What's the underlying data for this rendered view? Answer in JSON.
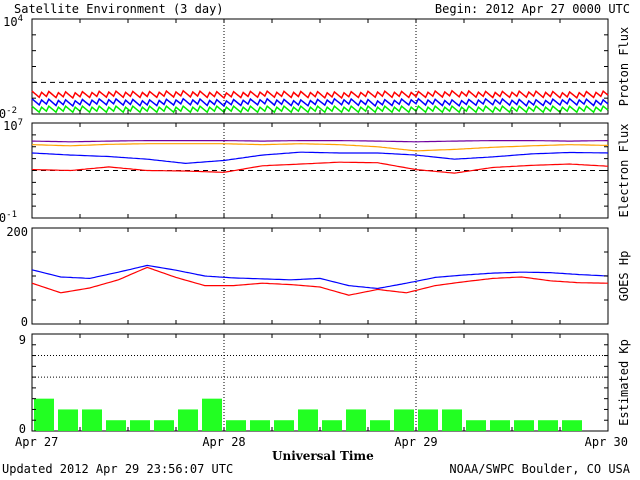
{
  "header": {
    "title": "Satellite Environment (3 day)",
    "begin": "Begin:  2012 Apr 27 0000 UTC"
  },
  "footer": {
    "updated": "Updated 2012 Apr 29 23:56:07 UTC",
    "credit": "NOAA/SWPC Boulder, CO USA"
  },
  "x_axis": {
    "title": "Universal Time",
    "ticks": [
      "Apr 27",
      "Apr 28",
      "Apr 29",
      "Apr 30"
    ]
  },
  "chart_data": [
    {
      "type": "line",
      "ylabel": "Proton Flux",
      "scale": "log",
      "ylim_exp": [
        -2,
        4
      ],
      "tick_base": "10",
      "tick_exponents": [
        "4",
        "-2"
      ],
      "x_range_days": [
        0,
        3
      ],
      "reference_line_level": 1,
      "series": [
        {
          "name_color": "#ff0000",
          "y": [
            0.18,
            0.16,
            0.18,
            0.17,
            0.19,
            0.16,
            0.18,
            0.17,
            0.16,
            0.18,
            0.17,
            0.19,
            0.17,
            0.18,
            0.16,
            0.18
          ]
        },
        {
          "name_color": "#0000ff",
          "y": [
            0.06,
            0.05,
            0.06,
            0.05,
            0.06,
            0.05,
            0.06,
            0.05,
            0.06,
            0.05,
            0.06,
            0.05,
            0.06,
            0.05,
            0.06,
            0.05
          ]
        },
        {
          "name_color": "#00ee00",
          "y": [
            0.02,
            0.02,
            0.02,
            0.02,
            0.02,
            0.02,
            0.02,
            0.02,
            0.02,
            0.02,
            0.02,
            0.02,
            0.02,
            0.02,
            0.02,
            0.02
          ]
        }
      ]
    },
    {
      "type": "line",
      "ylabel": "Electron Flux",
      "scale": "log",
      "ylim_exp": [
        -1,
        7
      ],
      "tick_base": "10",
      "tick_exponents": [
        "7",
        "-1"
      ],
      "x_range_days": [
        0,
        3
      ],
      "reference_line_level": 1000,
      "series": [
        {
          "name_color": "#7000a0",
          "y": [
            300000,
            260000,
            300000,
            330000,
            330000,
            330000,
            300000,
            330000,
            330000,
            300000,
            260000,
            300000,
            330000,
            330000,
            300000,
            330000
          ]
        },
        {
          "name_color": "#ffa000",
          "y": [
            150000,
            120000,
            160000,
            180000,
            180000,
            180000,
            150000,
            180000,
            150000,
            100000,
            45000,
            60000,
            90000,
            120000,
            150000,
            130000
          ]
        },
        {
          "name_color": "#0000ff",
          "y": [
            30000,
            20000,
            15000,
            9000,
            4000,
            7000,
            20000,
            35000,
            30000,
            30000,
            20000,
            9000,
            14000,
            25000,
            33000,
            30000
          ]
        },
        {
          "name_color": "#ff0000",
          "y": [
            1200,
            1000,
            2000,
            1000,
            900,
            700,
            2500,
            3500,
            5000,
            4500,
            1200,
            600,
            1800,
            2700,
            3500,
            2300
          ]
        }
      ]
    },
    {
      "type": "line",
      "ylabel": "GOES Hp",
      "scale": "linear",
      "ylim": [
        0,
        200
      ],
      "tick_labels": [
        "200",
        "0"
      ],
      "x_range_days": [
        0,
        3
      ],
      "series": [
        {
          "name_color": "#0000ff",
          "y": [
            113,
            98,
            95,
            108,
            122,
            112,
            100,
            96,
            94,
            92,
            95,
            80,
            74,
            85,
            97,
            102,
            106,
            108,
            107,
            103,
            100
          ]
        },
        {
          "name_color": "#ff0000",
          "y": [
            85,
            65,
            75,
            92,
            118,
            97,
            80,
            80,
            85,
            82,
            77,
            60,
            72,
            65,
            80,
            88,
            95,
            98,
            90,
            86,
            85
          ]
        }
      ]
    },
    {
      "type": "bar",
      "ylabel": "Estimated Kp",
      "ylim": [
        0,
        9
      ],
      "tick_labels": [
        "9",
        "0"
      ],
      "x_range_days": [
        0,
        3
      ],
      "bar_color": "#22ff22",
      "values": [
        3,
        2,
        2,
        1,
        1,
        1,
        2,
        3,
        1,
        1,
        1,
        2,
        1,
        2,
        1,
        2,
        2,
        2,
        1,
        1,
        1,
        1,
        1,
        0
      ]
    }
  ]
}
